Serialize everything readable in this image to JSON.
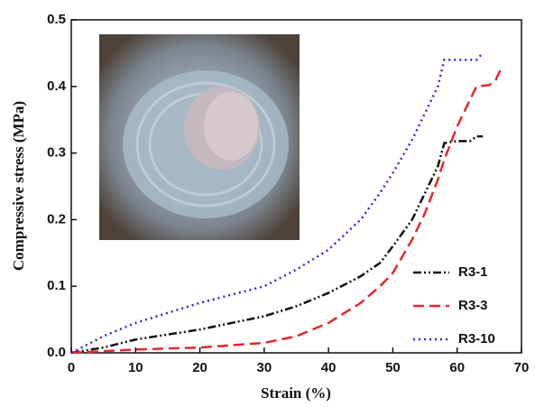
{
  "chart_data": {
    "type": "line",
    "xlabel": "Strain (%)",
    "ylabel": "Compressive stress (MPa)",
    "xlim": [
      0,
      70
    ],
    "xticks": [
      0,
      10,
      20,
      30,
      40,
      50,
      60,
      70
    ],
    "ylim": [
      0,
      0.5
    ],
    "yticks": [
      {
        "value": 0,
        "label": "0.0"
      },
      0.1,
      0.2,
      0.3,
      0.4,
      0.5
    ],
    "legend": "lower right",
    "series": [
      {
        "name": "R3-1",
        "color": "#111111",
        "line_style": "dashdot",
        "x": [
          0,
          5,
          10,
          20,
          30,
          35,
          40,
          45,
          48,
          50,
          53,
          55,
          57,
          58,
          60,
          62,
          63,
          64
        ],
        "values": [
          0,
          0.008,
          0.02,
          0.035,
          0.055,
          0.07,
          0.09,
          0.115,
          0.135,
          0.16,
          0.2,
          0.24,
          0.28,
          0.315,
          0.318,
          0.318,
          0.325,
          0.325
        ]
      },
      {
        "name": "R3-3",
        "color": "#e8262b",
        "line_style": "dashed",
        "x": [
          0,
          10,
          20,
          30,
          35,
          40,
          45,
          48,
          50,
          53,
          55,
          57,
          58,
          60,
          62,
          63,
          65,
          66,
          67
        ],
        "values": [
          0,
          0.005,
          0.008,
          0.015,
          0.025,
          0.045,
          0.075,
          0.1,
          0.12,
          0.17,
          0.21,
          0.26,
          0.29,
          0.34,
          0.38,
          0.4,
          0.402,
          0.41,
          0.43
        ]
      },
      {
        "name": "R3-10",
        "color": "#2a2ae0",
        "line_style": "dotted",
        "x": [
          0,
          5,
          10,
          20,
          30,
          35,
          40,
          45,
          48,
          50,
          53,
          55,
          57,
          58,
          60,
          62,
          63,
          64
        ],
        "values": [
          0,
          0.025,
          0.045,
          0.075,
          0.1,
          0.125,
          0.155,
          0.2,
          0.24,
          0.27,
          0.32,
          0.36,
          0.4,
          0.44,
          0.44,
          0.44,
          0.44,
          0.45
        ]
      }
    ]
  }
}
